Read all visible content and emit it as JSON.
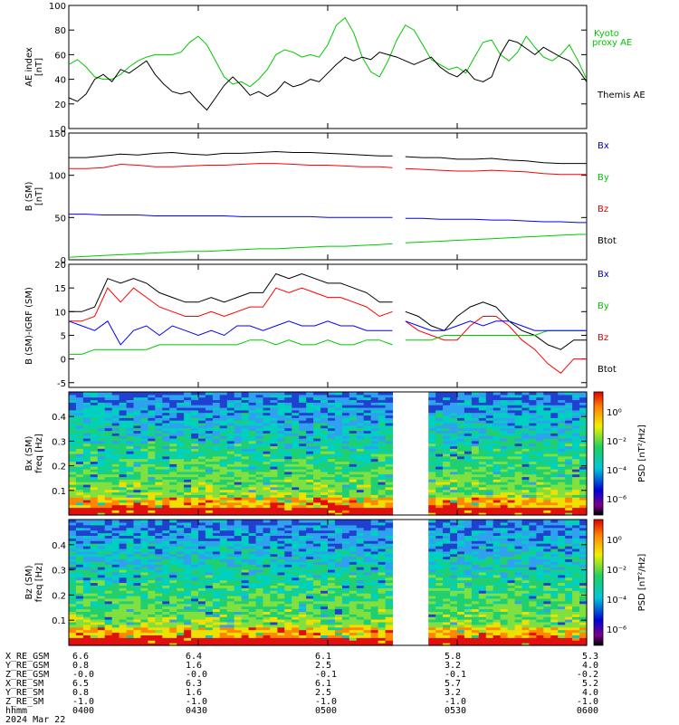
{
  "chart_data": [
    {
      "type": "line",
      "panel": "ae",
      "ylabel": [
        "AE index",
        "[nT]"
      ],
      "ylim": [
        0,
        100
      ],
      "yticks": [
        0,
        20,
        40,
        60,
        80,
        100
      ],
      "x": [
        0,
        2,
        4,
        6,
        8,
        10,
        12,
        14,
        16,
        18,
        20,
        22,
        24,
        26,
        28,
        30,
        32,
        34,
        36,
        38,
        40,
        42,
        44,
        46,
        48,
        50,
        52,
        54,
        56,
        58,
        60,
        62,
        64,
        66,
        68,
        70,
        72,
        74,
        76,
        78,
        80,
        82,
        84,
        86,
        88,
        90,
        92,
        94,
        96,
        98,
        100,
        102,
        104,
        106,
        108,
        110,
        112,
        114,
        116,
        118,
        120
      ],
      "series": [
        {
          "name": "Kyoto proxy AE",
          "color": "#00c800",
          "values": [
            52,
            56,
            50,
            42,
            40,
            40,
            44,
            50,
            55,
            58,
            60,
            60,
            60,
            62,
            70,
            75,
            68,
            55,
            42,
            36,
            38,
            34,
            40,
            48,
            60,
            64,
            62,
            58,
            60,
            58,
            68,
            84,
            90,
            78,
            58,
            46,
            42,
            55,
            72,
            84,
            80,
            68,
            56,
            52,
            48,
            50,
            45,
            58,
            70,
            72,
            60,
            55,
            62,
            75,
            66,
            58,
            55,
            60,
            68,
            55,
            40
          ]
        },
        {
          "name": "Themis AE",
          "color": "#000000",
          "values": [
            25,
            22,
            28,
            40,
            44,
            38,
            48,
            45,
            50,
            55,
            44,
            36,
            30,
            28,
            30,
            22,
            15,
            25,
            35,
            42,
            35,
            27,
            30,
            26,
            30,
            38,
            34,
            36,
            40,
            38,
            45,
            52,
            58,
            55,
            58,
            56,
            62,
            60,
            58,
            55,
            52,
            55,
            58,
            50,
            45,
            42,
            48,
            40,
            38,
            42,
            60,
            72,
            70,
            65,
            60,
            66,
            62,
            58,
            55,
            48,
            38
          ]
        }
      ]
    },
    {
      "type": "line",
      "panel": "bsm",
      "ylabel": [
        "B (SM)",
        "[nT]"
      ],
      "ylim": [
        0,
        150
      ],
      "yticks": [
        0,
        50,
        100,
        150
      ],
      "gap": [
        75,
        78
      ],
      "x": [
        0,
        4,
        8,
        12,
        16,
        20,
        24,
        28,
        32,
        36,
        40,
        44,
        48,
        52,
        56,
        60,
        64,
        68,
        72,
        75,
        78,
        82,
        86,
        90,
        94,
        98,
        102,
        106,
        110,
        114,
        118,
        120
      ],
      "series": [
        {
          "name": "Btot",
          "color": "#000000",
          "values": [
            121,
            121,
            123,
            125,
            124,
            126,
            127,
            125,
            124,
            126,
            126,
            127,
            128,
            127,
            127,
            126,
            125,
            124,
            123,
            123,
            122,
            121,
            121,
            119,
            119,
            120,
            118,
            117,
            115,
            114,
            114,
            114
          ]
        },
        {
          "name": "Bx",
          "color": "#ff0000",
          "values": [
            108,
            108,
            109,
            113,
            112,
            110,
            110,
            111,
            112,
            112,
            113,
            114,
            114,
            113,
            112,
            112,
            111,
            110,
            110,
            109,
            108,
            107,
            106,
            105,
            105,
            106,
            105,
            104,
            102,
            101,
            101,
            101
          ]
        },
        {
          "name": "By",
          "color": "#00c800",
          "values": [
            3,
            4,
            5,
            6,
            7,
            8,
            9,
            10,
            10,
            11,
            12,
            13,
            13,
            14,
            15,
            16,
            16,
            17,
            18,
            19,
            20,
            21,
            22,
            23,
            24,
            25,
            26,
            27,
            28,
            29,
            30,
            30
          ]
        },
        {
          "name": "Bz",
          "color": "#0000ff",
          "values": [
            54,
            54,
            53,
            53,
            53,
            52,
            52,
            52,
            52,
            52,
            51,
            51,
            51,
            51,
            51,
            50,
            50,
            50,
            50,
            50,
            49,
            49,
            48,
            48,
            48,
            47,
            47,
            46,
            45,
            45,
            44,
            44
          ]
        }
      ]
    },
    {
      "type": "line",
      "panel": "dbsm",
      "ylabel": [
        "B (SM)-IGRF (SM)",
        ""
      ],
      "ylim": [
        -6,
        20
      ],
      "yticks": [
        -5,
        0,
        5,
        10,
        15,
        20
      ],
      "gap": [
        75,
        78
      ],
      "x": [
        0,
        3,
        6,
        9,
        12,
        15,
        18,
        21,
        24,
        27,
        30,
        33,
        36,
        39,
        42,
        45,
        48,
        51,
        54,
        57,
        60,
        63,
        66,
        69,
        72,
        75,
        78,
        81,
        84,
        87,
        90,
        93,
        96,
        99,
        102,
        105,
        108,
        111,
        114,
        117,
        120
      ],
      "series": [
        {
          "name": "Btot",
          "color": "#000000",
          "values": [
            10,
            10,
            11,
            17,
            16,
            17,
            16,
            14,
            13,
            12,
            12,
            13,
            12,
            13,
            14,
            14,
            18,
            17,
            18,
            17,
            16,
            16,
            15,
            14,
            12,
            12,
            10,
            9,
            7,
            6,
            9,
            11,
            12,
            11,
            8,
            6,
            5,
            3,
            2,
            4,
            4
          ]
        },
        {
          "name": "Bx",
          "color": "#ff0000",
          "values": [
            8,
            8,
            9,
            15,
            12,
            15,
            13,
            11,
            10,
            9,
            9,
            10,
            9,
            10,
            11,
            11,
            15,
            14,
            15,
            14,
            13,
            13,
            12,
            11,
            9,
            10,
            8,
            6,
            5,
            4,
            4,
            7,
            9,
            9,
            7,
            4,
            2,
            -1,
            -3,
            0,
            0
          ]
        },
        {
          "name": "By",
          "color": "#00c800",
          "values": [
            1,
            1,
            2,
            2,
            2,
            2,
            2,
            3,
            3,
            3,
            3,
            3,
            3,
            3,
            4,
            4,
            3,
            4,
            3,
            3,
            4,
            3,
            3,
            4,
            4,
            3,
            4,
            4,
            4,
            5,
            5,
            5,
            5,
            5,
            5,
            5,
            5,
            6,
            6,
            6,
            6
          ]
        },
        {
          "name": "Bz",
          "color": "#0000ff",
          "values": [
            8,
            7,
            6,
            8,
            3,
            6,
            7,
            5,
            7,
            6,
            5,
            6,
            5,
            7,
            7,
            6,
            7,
            8,
            7,
            7,
            8,
            7,
            7,
            6,
            6,
            6,
            8,
            7,
            6,
            6,
            7,
            8,
            7,
            8,
            8,
            7,
            6,
            6,
            6,
            6,
            6
          ]
        }
      ]
    },
    {
      "type": "heatmap",
      "panel": "bxpsd",
      "ylabel": [
        "Bx (SM)",
        "freq [Hz]"
      ],
      "ylim": [
        0,
        0.5
      ],
      "yticks": [
        0.1,
        0.2,
        0.3,
        0.4
      ],
      "gap": [
        75,
        83
      ],
      "colorbar": {
        "label": "PSD [nT²/Hz]",
        "ticks": [
          "10⁰",
          "10⁻²",
          "10⁻⁴",
          "10⁻⁶"
        ]
      }
    },
    {
      "type": "heatmap",
      "panel": "bzpsd",
      "ylabel": [
        "Bz (SM)",
        "freq [Hz]"
      ],
      "ylim": [
        0,
        0.5
      ],
      "yticks": [
        0.1,
        0.2,
        0.3,
        0.4
      ],
      "gap": [
        75,
        83
      ],
      "colorbar": {
        "label": "PSD [nT²/Hz]",
        "ticks": [
          "10⁰",
          "10⁻²",
          "10⁻⁴",
          "10⁻⁶"
        ]
      }
    }
  ],
  "legends": {
    "ae": [
      "Kyoto",
      "proxy AE",
      "Themis AE"
    ],
    "bsm": [
      "Bx",
      "By",
      "Bz",
      "Btot"
    ],
    "dbsm": [
      "Bx",
      "By",
      "Bz",
      "Btot"
    ]
  },
  "footer": {
    "rows": [
      {
        "label": "X_RE_GSM",
        "values": [
          "6.6",
          "6.4",
          "6.1",
          "5.8",
          "5.3"
        ]
      },
      {
        "label": "Y_RE_GSM",
        "values": [
          "0.8",
          "1.6",
          "2.5",
          "3.2",
          "4.0"
        ]
      },
      {
        "label": "Z_RE_GSM",
        "values": [
          "-0.0",
          "-0.0",
          "-0.1",
          "-0.1",
          "-0.2"
        ]
      },
      {
        "label": "X_RE_SM",
        "values": [
          "6.5",
          "6.3",
          "6.1",
          "5.7",
          "5.2"
        ]
      },
      {
        "label": "Y_RE_SM",
        "values": [
          "0.8",
          "1.6",
          "2.5",
          "3.2",
          "4.0"
        ]
      },
      {
        "label": "Z_RE_SM",
        "values": [
          "-1.0",
          "-1.0",
          "-1.0",
          "-1.0",
          "-1.0"
        ]
      },
      {
        "label": "hhmm",
        "values": [
          "0400",
          "0430",
          "0500",
          "0530",
          "0600"
        ]
      }
    ],
    "date": "2024 Mar 22"
  }
}
